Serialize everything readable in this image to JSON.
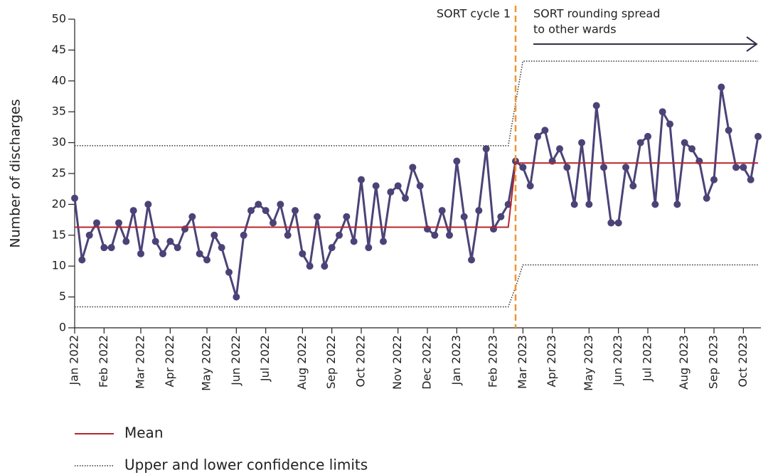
{
  "chart_data": {
    "type": "line",
    "y_label": "Number of discharges",
    "ylim": [
      0,
      50
    ],
    "yticks": [
      0,
      5,
      10,
      15,
      20,
      25,
      30,
      35,
      40,
      45,
      50
    ],
    "categories": [
      "Jan 2022",
      null,
      null,
      null,
      "Feb 2022",
      null,
      null,
      null,
      null,
      "Mar 2022",
      null,
      null,
      null,
      "Apr 2022",
      null,
      null,
      null,
      null,
      "May 2022",
      null,
      null,
      null,
      "Jun 2022",
      null,
      null,
      null,
      "Jul 2022",
      null,
      null,
      null,
      null,
      "Aug 2022",
      null,
      null,
      null,
      "Sep 2022",
      null,
      null,
      null,
      "Oct 2022",
      null,
      null,
      null,
      null,
      "Nov 2022",
      null,
      null,
      null,
      "Dec 2022",
      null,
      null,
      null,
      "Jan 2023",
      null,
      null,
      null,
      null,
      "Feb 2023",
      null,
      null,
      null,
      "Mar 2023",
      null,
      null,
      null,
      "Apr 2023",
      null,
      null,
      null,
      null,
      "May 2023",
      null,
      null,
      null,
      "Jun 2023",
      null,
      null,
      null,
      "Jul 2023",
      null,
      null,
      null,
      null,
      "Aug 2023",
      null,
      null,
      null,
      "Sep 2023",
      null,
      null,
      null,
      "Oct 2023",
      null,
      null
    ],
    "series": [
      {
        "color": "#4b4377",
        "values": [
          21,
          11,
          15,
          17,
          13,
          13,
          17,
          14,
          19,
          12,
          20,
          14,
          12,
          14,
          13,
          16,
          18,
          12,
          11,
          15,
          13,
          9,
          5,
          15,
          19,
          20,
          19,
          17,
          20,
          15,
          19,
          12,
          10,
          18,
          10,
          13,
          15,
          18,
          14,
          24,
          13,
          23,
          14,
          22,
          23,
          21,
          26,
          23,
          16,
          15,
          19,
          15,
          27,
          18,
          11,
          19,
          29,
          16,
          18,
          20,
          27,
          26,
          23,
          31,
          32,
          27,
          29,
          26,
          20,
          30,
          20,
          36,
          26,
          17,
          17,
          26,
          23,
          30,
          31,
          20,
          35,
          33,
          20,
          30,
          29,
          27,
          21,
          24,
          39,
          32,
          26,
          26,
          24,
          31
        ]
      },
      {
        "name": "Mean",
        "color": "#b5262f",
        "values": [
          16.3,
          16.3,
          16.3,
          16.3,
          16.3,
          16.3,
          16.3,
          16.3,
          16.3,
          16.3,
          16.3,
          16.3,
          16.3,
          16.3,
          16.3,
          16.3,
          16.3,
          16.3,
          16.3,
          16.3,
          16.3,
          16.3,
          16.3,
          16.3,
          16.3,
          16.3,
          16.3,
          16.3,
          16.3,
          16.3,
          16.3,
          16.3,
          16.3,
          16.3,
          16.3,
          16.3,
          16.3,
          16.3,
          16.3,
          16.3,
          16.3,
          16.3,
          16.3,
          16.3,
          16.3,
          16.3,
          16.3,
          16.3,
          16.3,
          16.3,
          16.3,
          16.3,
          16.3,
          16.3,
          16.3,
          16.3,
          16.3,
          16.3,
          16.3,
          16.3,
          26.7,
          26.7,
          26.7,
          26.7,
          26.7,
          26.7,
          26.7,
          26.7,
          26.7,
          26.7,
          26.7,
          26.7,
          26.7,
          26.7,
          26.7,
          26.7,
          26.7,
          26.7,
          26.7,
          26.7,
          26.7,
          26.7,
          26.7,
          26.7,
          26.7,
          26.7,
          26.7,
          26.7,
          26.7,
          26.7,
          26.7,
          26.7,
          26.7,
          26.7
        ]
      },
      {
        "name": "Upper and lower confidence limits",
        "color": "#333333",
        "dotted": true,
        "values": [
          29.5,
          29.5,
          29.5,
          29.5,
          29.5,
          29.5,
          29.5,
          29.5,
          29.5,
          29.5,
          29.5,
          29.5,
          29.5,
          29.5,
          29.5,
          29.5,
          29.5,
          29.5,
          29.5,
          29.5,
          29.5,
          29.5,
          29.5,
          29.5,
          29.5,
          29.5,
          29.5,
          29.5,
          29.5,
          29.5,
          29.5,
          29.5,
          29.5,
          29.5,
          29.5,
          29.5,
          29.5,
          29.5,
          29.5,
          29.5,
          29.5,
          29.5,
          29.5,
          29.5,
          29.5,
          29.5,
          29.5,
          29.5,
          29.5,
          29.5,
          29.5,
          29.5,
          29.5,
          29.5,
          29.5,
          29.5,
          29.5,
          29.5,
          29.5,
          29.5,
          36.4,
          43.2,
          43.2,
          43.2,
          43.2,
          43.2,
          43.2,
          43.2,
          43.2,
          43.2,
          43.2,
          43.2,
          43.2,
          43.2,
          43.2,
          43.2,
          43.2,
          43.2,
          43.2,
          43.2,
          43.2,
          43.2,
          43.2,
          43.2,
          43.2,
          43.2,
          43.2,
          43.2,
          43.2,
          43.2,
          43.2,
          43.2,
          43.2,
          43.2
        ],
        "lower": [
          3.4,
          3.4,
          3.4,
          3.4,
          3.4,
          3.4,
          3.4,
          3.4,
          3.4,
          3.4,
          3.4,
          3.4,
          3.4,
          3.4,
          3.4,
          3.4,
          3.4,
          3.4,
          3.4,
          3.4,
          3.4,
          3.4,
          3.4,
          3.4,
          3.4,
          3.4,
          3.4,
          3.4,
          3.4,
          3.4,
          3.4,
          3.4,
          3.4,
          3.4,
          3.4,
          3.4,
          3.4,
          3.4,
          3.4,
          3.4,
          3.4,
          3.4,
          3.4,
          3.4,
          3.4,
          3.4,
          3.4,
          3.4,
          3.4,
          3.4,
          3.4,
          3.4,
          3.4,
          3.4,
          3.4,
          3.4,
          3.4,
          3.4,
          3.4,
          3.4,
          6.6,
          10.2,
          10.2,
          10.2,
          10.2,
          10.2,
          10.2,
          10.2,
          10.2,
          10.2,
          10.2,
          10.2,
          10.2,
          10.2,
          10.2,
          10.2,
          10.2,
          10.2,
          10.2,
          10.2,
          10.2,
          10.2,
          10.2,
          10.2,
          10.2,
          10.2,
          10.2,
          10.2,
          10.2,
          10.2,
          10.2,
          10.2,
          10.2,
          10.2
        ]
      }
    ],
    "annotations": [
      {
        "text": [
          "SORT cycle 1"
        ],
        "at": 60,
        "color": "#f0962e"
      },
      {
        "text": [
          "SORT rounding spread",
          "to other wards"
        ],
        "arrow": true,
        "color": "#2f2f4a"
      }
    ]
  }
}
